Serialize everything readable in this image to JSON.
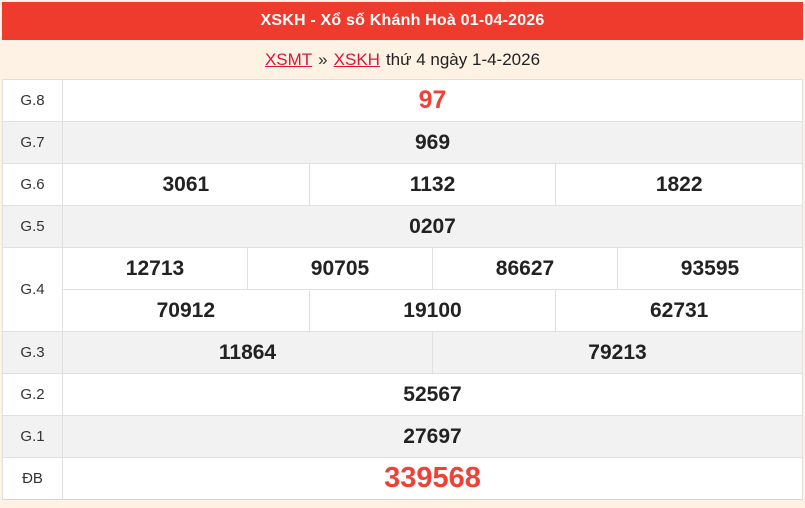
{
  "header": {
    "title": "XSKH - Xổ số Khánh Hoà 01-04-2026"
  },
  "breadcrumb": {
    "links": [
      {
        "label": "XSMT"
      },
      {
        "label": "XSKH"
      }
    ],
    "separator": "»",
    "suffix": "thứ 4 ngày 1-4-2026"
  },
  "results_table": {
    "rows": [
      {
        "label": "G.8",
        "emphasis": true,
        "lines": [
          [
            "97"
          ]
        ]
      },
      {
        "label": "G.7",
        "emphasis": false,
        "lines": [
          [
            "969"
          ]
        ]
      },
      {
        "label": "G.6",
        "emphasis": false,
        "lines": [
          [
            "3061",
            "1132",
            "1822"
          ]
        ]
      },
      {
        "label": "G.5",
        "emphasis": false,
        "lines": [
          [
            "0207"
          ]
        ]
      },
      {
        "label": "G.4",
        "emphasis": false,
        "lines": [
          [
            "12713",
            "90705",
            "86627",
            "93595"
          ],
          [
            "70912",
            "19100",
            "62731"
          ]
        ]
      },
      {
        "label": "G.3",
        "emphasis": false,
        "lines": [
          [
            "11864",
            "79213"
          ]
        ]
      },
      {
        "label": "G.2",
        "emphasis": false,
        "lines": [
          [
            "52567"
          ]
        ]
      },
      {
        "label": "G.1",
        "emphasis": false,
        "lines": [
          [
            "27697"
          ]
        ]
      },
      {
        "label": "ĐB",
        "emphasis": true,
        "lines": [
          [
            "339568"
          ]
        ]
      }
    ]
  },
  "colors": {
    "header_bg": "#ee3b2e",
    "number_accent": "#ef4136",
    "link": "#dc143c",
    "page_bg": "#fdf2e4",
    "shaded_row": "#f2f2f2"
  }
}
